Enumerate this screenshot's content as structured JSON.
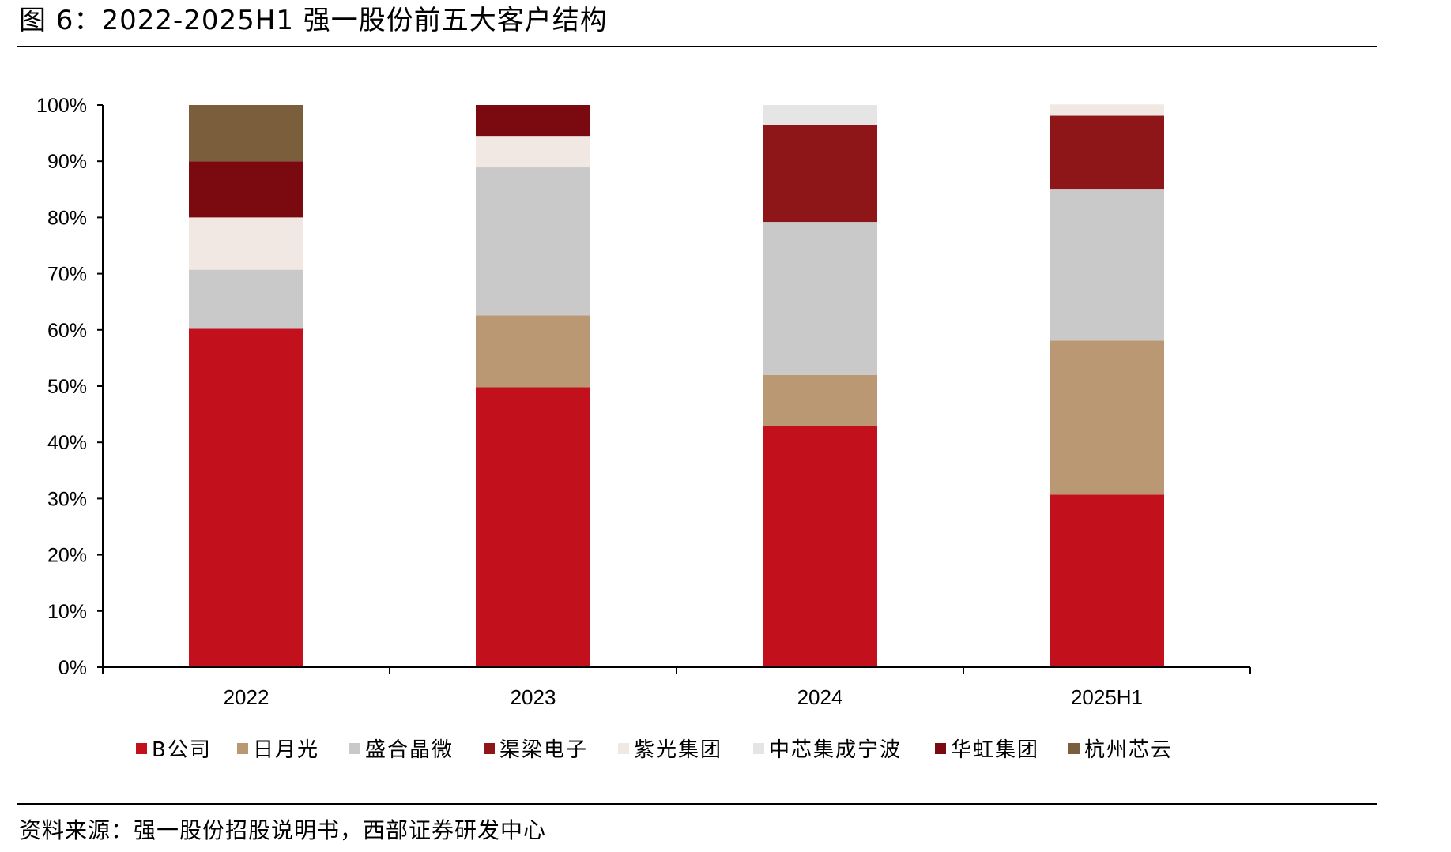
{
  "title": "图 6：2022-2025H1 强一股份前五大客户结构",
  "source": "资料来源：强一股份招股说明书，西部证券研发中心",
  "chart_data": {
    "type": "bar",
    "stacked": true,
    "categories": [
      "2022",
      "2023",
      "2024",
      "2025H1"
    ],
    "ylim": [
      0,
      100
    ],
    "yticks": [
      0,
      10,
      20,
      30,
      40,
      50,
      60,
      70,
      80,
      90,
      100
    ],
    "ytick_labels": [
      "0%",
      "10%",
      "20%",
      "30%",
      "40%",
      "50%",
      "60%",
      "70%",
      "80%",
      "90%",
      "100%"
    ],
    "legend_position": "bottom",
    "series": [
      {
        "name": "B公司",
        "color": "#c3101d",
        "values": [
          60.2,
          49.8,
          42.9,
          30.7
        ]
      },
      {
        "name": "日月光",
        "color": "#b99873",
        "values": [
          0,
          12.8,
          9.1,
          27.4
        ]
      },
      {
        "name": "盛合晶微",
        "color": "#c9c9c9",
        "values": [
          10.5,
          26.3,
          27.2,
          27.0
        ]
      },
      {
        "name": "渠梁电子",
        "color": "#8e1518",
        "values": [
          0,
          0,
          17.3,
          13.0
        ]
      },
      {
        "name": "紫光集团",
        "color": "#f1e8e3",
        "values": [
          9.3,
          5.6,
          0,
          2.0
        ]
      },
      {
        "name": "中芯集成宁波",
        "color": "#e5e5e5",
        "values": [
          0,
          0,
          3.5,
          0
        ]
      },
      {
        "name": "华虹集团",
        "color": "#7a0a10",
        "values": [
          10.0,
          5.5,
          0,
          0
        ]
      },
      {
        "name": "杭州芯云",
        "color": "#7b5e3c",
        "values": [
          10.0,
          0,
          0,
          0
        ]
      }
    ]
  }
}
